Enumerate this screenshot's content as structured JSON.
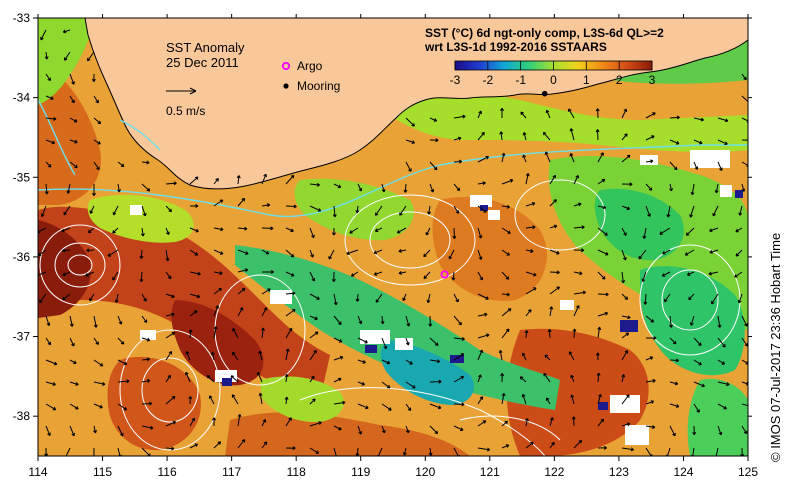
{
  "title": {
    "line1": "SST Anomaly",
    "line2": "25 Dec 2011"
  },
  "scale_arrow": {
    "label": "0.5 m/s"
  },
  "legend": {
    "argo": "Argo",
    "mooring": "Mooring"
  },
  "product": {
    "line1": "SST (°C) 6d ngt-only comp, L3S-6d QL>=2",
    "line2": "wrt L3S-1d 1992-2016 SSTAARS"
  },
  "colorbar": {
    "ticks": [
      "-3",
      "-2",
      "-1",
      "0",
      "1",
      "2",
      "3"
    ],
    "colors": [
      "#1a0a8a",
      "#1f3ed0",
      "#12a7d8",
      "#2fcf7a",
      "#a8e030",
      "#f2d21a",
      "#f08a18",
      "#d44a14",
      "#8a1a0a"
    ]
  },
  "credit": "©  IMOS 07-Jul-2017 23:36 Hobart Time",
  "axes": {
    "lon_range": [
      114,
      125
    ],
    "lat_range": [
      -38.5,
      -33
    ],
    "lon_ticks": [
      "114",
      "115",
      "116",
      "117",
      "118",
      "119",
      "120",
      "121",
      "122",
      "123",
      "124",
      "125"
    ],
    "lat_ticks": [
      "-33",
      "-34",
      "-35",
      "-36",
      "-37",
      "-38"
    ]
  },
  "markers": {
    "argo": {
      "lon": 120.3,
      "lat": -36.22
    },
    "mooring": {
      "lon": 121.85,
      "lat": -33.95
    }
  },
  "colors": {
    "land": "#f9c89a",
    "ocean_base": "#e9a235",
    "coast": "#000000",
    "contour": "#ffffff",
    "current": "#6fe0e8",
    "argo": "#ff00ff"
  }
}
